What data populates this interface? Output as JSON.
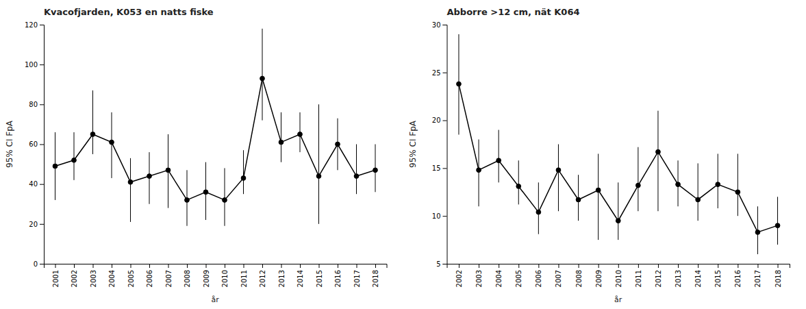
{
  "chart_data": [
    {
      "type": "line",
      "title": "Kvacofjarden, K053 en natts fiske",
      "ylabel": "95% CI FpA",
      "xlabel": "år",
      "categories": [
        "2001",
        "2002",
        "2003",
        "2004",
        "2005",
        "2006",
        "2007",
        "2008",
        "2009",
        "2010",
        "2011",
        "2012",
        "2013",
        "2014",
        "2015",
        "2016",
        "2017",
        "2018"
      ],
      "values": [
        49,
        52,
        65,
        61,
        41,
        44,
        47,
        32,
        36,
        32,
        43,
        93,
        61,
        65,
        44,
        60,
        44,
        47
      ],
      "ci_low": [
        32,
        42,
        55,
        43,
        21,
        30,
        28,
        19,
        22,
        19,
        35,
        72,
        51,
        56,
        20,
        47,
        35,
        36
      ],
      "ci_high": [
        66,
        66,
        87,
        76,
        53,
        56,
        65,
        47,
        51,
        48,
        57,
        118,
        76,
        76,
        80,
        73,
        60,
        60
      ],
      "ylim": [
        0,
        120
      ],
      "yticks": [
        0,
        20,
        40,
        60,
        80,
        100,
        120
      ],
      "color": "#000000",
      "marker": "circle",
      "line_style": "solid",
      "grid": false
    },
    {
      "type": "line",
      "title": "Abborre >12 cm, nät K064",
      "ylabel": "95% CI FpA",
      "xlabel": "år",
      "categories": [
        "2002",
        "2003",
        "2004",
        "2005",
        "2006",
        "2007",
        "2008",
        "2009",
        "2010",
        "2011",
        "2012",
        "2013",
        "2014",
        "2015",
        "2016",
        "2017",
        "2018"
      ],
      "values": [
        23.8,
        14.8,
        15.8,
        13.1,
        10.4,
        14.8,
        11.7,
        12.7,
        9.5,
        13.2,
        16.7,
        13.3,
        11.7,
        13.3,
        12.5,
        8.3,
        9.0
      ],
      "ci_low": [
        18.5,
        11.0,
        13.5,
        11.2,
        8.1,
        10.5,
        9.5,
        7.5,
        7.5,
        10.5,
        10.5,
        11.0,
        9.5,
        10.8,
        10.0,
        6.0,
        7.0
      ],
      "ci_high": [
        29.0,
        18.0,
        19.0,
        15.8,
        13.5,
        17.5,
        14.3,
        16.5,
        13.5,
        17.2,
        21.0,
        15.8,
        15.5,
        16.5,
        16.5,
        11.0,
        12.0
      ],
      "ylim": [
        5,
        30
      ],
      "yticks": [
        5,
        10,
        15,
        20,
        25,
        30
      ],
      "color": "#000000",
      "marker": "circle",
      "line_style": "solid",
      "grid": false
    }
  ]
}
